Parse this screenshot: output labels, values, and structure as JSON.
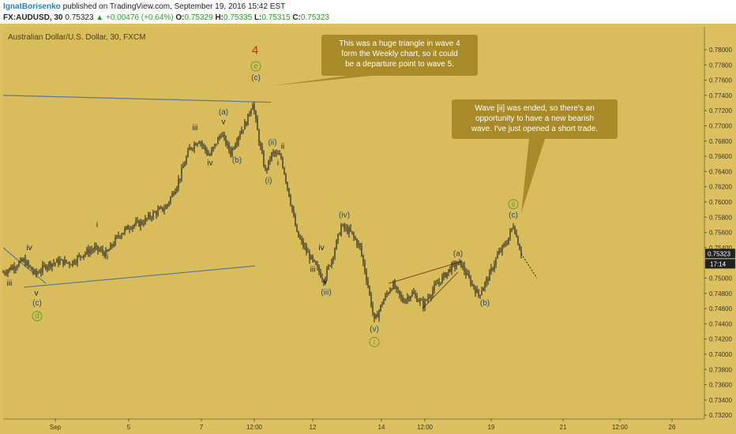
{
  "header": {
    "author": "IgnatBorisenko",
    "published_text": "published on TradingView.com, September 19, 2016 15:42 EST",
    "symbol": "FX:AUDUSD, 30",
    "last": "0.75323",
    "change": "+0.00476 (+0.64%)",
    "o_label": "O:",
    "o": "0.75329",
    "h_label": "H:",
    "h": "0.75335",
    "l_label": "L:",
    "l": "0.75315",
    "c_label": "C:",
    "c": "0.75323"
  },
  "chart_data": {
    "type": "candlestick",
    "title": "Australian Dollar/U.S. Dollar, 30, FXCM",
    "ylim": [
      0.7315,
      0.783
    ],
    "y_ticks": [
      "0.78000",
      "0.77800",
      "0.77600",
      "0.77400",
      "0.77200",
      "0.77000",
      "0.76800",
      "0.76600",
      "0.76400",
      "0.76200",
      "0.76000",
      "0.75800",
      "0.75600",
      "0.75400",
      "0.75200",
      "0.75000",
      "0.74800",
      "0.74600",
      "0.74400",
      "0.74200",
      "0.74000",
      "0.73800",
      "0.73600",
      "0.73400",
      "0.73200"
    ],
    "x_ticks": [
      "Sep",
      "5",
      "7",
      "12:00",
      "12",
      "14",
      "12:00",
      "19",
      "21",
      "12:00",
      "26"
    ],
    "current_price": "0.75323",
    "countdown": "17:14",
    "price_path": [
      {
        "x": 0,
        "y": 0.7505
      },
      {
        "x": 15,
        "y": 0.7514
      },
      {
        "x": 30,
        "y": 0.7523
      },
      {
        "x": 45,
        "y": 0.7505
      },
      {
        "x": 60,
        "y": 0.7518
      },
      {
        "x": 75,
        "y": 0.7522
      },
      {
        "x": 90,
        "y": 0.752
      },
      {
        "x": 105,
        "y": 0.7532
      },
      {
        "x": 120,
        "y": 0.7539
      },
      {
        "x": 135,
        "y": 0.7532
      },
      {
        "x": 150,
        "y": 0.7556
      },
      {
        "x": 165,
        "y": 0.7569
      },
      {
        "x": 180,
        "y": 0.7573
      },
      {
        "x": 195,
        "y": 0.7585
      },
      {
        "x": 210,
        "y": 0.7593
      },
      {
        "x": 225,
        "y": 0.7625
      },
      {
        "x": 240,
        "y": 0.767
      },
      {
        "x": 252,
        "y": 0.7682
      },
      {
        "x": 265,
        "y": 0.766
      },
      {
        "x": 280,
        "y": 0.769
      },
      {
        "x": 292,
        "y": 0.7665
      },
      {
        "x": 303,
        "y": 0.769
      },
      {
        "x": 312,
        "y": 0.7705
      },
      {
        "x": 320,
        "y": 0.7731
      },
      {
        "x": 328,
        "y": 0.768
      },
      {
        "x": 336,
        "y": 0.764
      },
      {
        "x": 345,
        "y": 0.7665
      },
      {
        "x": 356,
        "y": 0.7658
      },
      {
        "x": 366,
        "y": 0.761
      },
      {
        "x": 376,
        "y": 0.7558
      },
      {
        "x": 388,
        "y": 0.7535
      },
      {
        "x": 400,
        "y": 0.7515
      },
      {
        "x": 410,
        "y": 0.7498
      },
      {
        "x": 420,
        "y": 0.7525
      },
      {
        "x": 432,
        "y": 0.7568
      },
      {
        "x": 444,
        "y": 0.756
      },
      {
        "x": 456,
        "y": 0.754
      },
      {
        "x": 466,
        "y": 0.749
      },
      {
        "x": 474,
        "y": 0.7443
      },
      {
        "x": 485,
        "y": 0.747
      },
      {
        "x": 497,
        "y": 0.7492
      },
      {
        "x": 510,
        "y": 0.747
      },
      {
        "x": 522,
        "y": 0.748
      },
      {
        "x": 536,
        "y": 0.7465
      },
      {
        "x": 548,
        "y": 0.7485
      },
      {
        "x": 560,
        "y": 0.75
      },
      {
        "x": 572,
        "y": 0.7515
      },
      {
        "x": 583,
        "y": 0.752
      },
      {
        "x": 593,
        "y": 0.75
      },
      {
        "x": 606,
        "y": 0.7478
      },
      {
        "x": 618,
        "y": 0.75
      },
      {
        "x": 630,
        "y": 0.753
      },
      {
        "x": 642,
        "y": 0.7548
      },
      {
        "x": 650,
        "y": 0.757
      },
      {
        "x": 660,
        "y": 0.7532
      }
    ],
    "projection": [
      {
        "x": 660,
        "y": 0.7532
      },
      {
        "x": 680,
        "y": 0.75
      }
    ],
    "trendlines": [
      {
        "x1": 4,
        "y1": 0.774,
        "x2": 343,
        "y2": 0.7731
      },
      {
        "x1": 4,
        "y1": 0.754,
        "x2": 58,
        "y2": 0.7493
      },
      {
        "x1": 30,
        "y1": 0.7488,
        "x2": 323,
        "y2": 0.7516
      },
      {
        "x1": 492,
        "y1": 0.7493,
        "x2": 585,
        "y2": 0.7522
      },
      {
        "x1": 535,
        "y1": 0.746,
        "x2": 580,
        "y2": 0.7508
      }
    ],
    "wave_labels": [
      {
        "text": "iii",
        "x": 12,
        "y": 0.749
      },
      {
        "text": "iv",
        "x": 37,
        "y": 0.7537
      },
      {
        "text": "v",
        "x": 46,
        "y": 0.7477
      },
      {
        "text": "(c)",
        "x": 47,
        "y": 0.7464
      },
      {
        "text": "d",
        "x": 47,
        "y": 0.7447,
        "circled": true,
        "color": "#6a9a2a"
      },
      {
        "text": "ii",
        "x": 135,
        "y": 0.7525
      },
      {
        "text": "i",
        "x": 123,
        "y": 0.7567
      },
      {
        "text": "iii",
        "x": 247,
        "y": 0.7694
      },
      {
        "text": "iv",
        "x": 266,
        "y": 0.7648
      },
      {
        "text": "(a)",
        "x": 283,
        "y": 0.7715
      },
      {
        "text": "v",
        "x": 283,
        "y": 0.7702
      },
      {
        "text": "(b)",
        "x": 300,
        "y": 0.7652
      },
      {
        "text": "4",
        "x": 323,
        "y": 0.7794,
        "color": "#b83010",
        "size": 15
      },
      {
        "text": "e",
        "x": 324,
        "y": 0.7775,
        "circled": true,
        "color": "#6a9a2a"
      },
      {
        "text": "(c)",
        "x": 324,
        "y": 0.776
      },
      {
        "text": "(ii)",
        "x": 345,
        "y": 0.7675
      },
      {
        "text": "ii",
        "x": 358,
        "y": 0.767
      },
      {
        "text": "(i)",
        "x": 340,
        "y": 0.7625
      },
      {
        "text": "i",
        "x": 352,
        "y": 0.7648
      },
      {
        "text": "iv",
        "x": 407,
        "y": 0.7537
      },
      {
        "text": "iii",
        "x": 396,
        "y": 0.7508
      },
      {
        "text": "v",
        "x": 412,
        "y": 0.7492
      },
      {
        "text": "(iii)",
        "x": 413,
        "y": 0.7478
      },
      {
        "text": "(iv)",
        "x": 436,
        "y": 0.758
      },
      {
        "text": "(v)",
        "x": 474,
        "y": 0.743
      },
      {
        "text": "i",
        "x": 474,
        "y": 0.7413,
        "circled": true,
        "color": "#6a9a2a"
      },
      {
        "text": "(a)",
        "x": 580,
        "y": 0.7529
      },
      {
        "text": "(b)",
        "x": 614,
        "y": 0.7464
      },
      {
        "text": "ii",
        "x": 650,
        "y": 0.7594,
        "circled": true,
        "color": "#6a9a2a"
      },
      {
        "text": "(c)",
        "x": 650,
        "y": 0.758
      }
    ],
    "annotations": [
      {
        "lines": [
          "This was a huge triangle in wave 4",
          "form the Weekly chart, so it could",
          "be a departure point to wave 5."
        ]
      },
      {
        "lines": [
          "Wave [ii] was ended, so there's an",
          "opportunity to have a new bearish",
          "wave. I've just opened a short trade."
        ]
      }
    ]
  },
  "colors": {
    "background": "#dcc061",
    "plot_bg": "#d9bd5d",
    "candles": "#1e1e1e",
    "trendline": "#5a7896",
    "trendline_brown": "#7a5a2a",
    "wave_text": "#2a4a6a",
    "label_dark": "#222222",
    "callout": "#a88a28",
    "callout_text": "#ffffff",
    "price_tag": "#222222"
  }
}
